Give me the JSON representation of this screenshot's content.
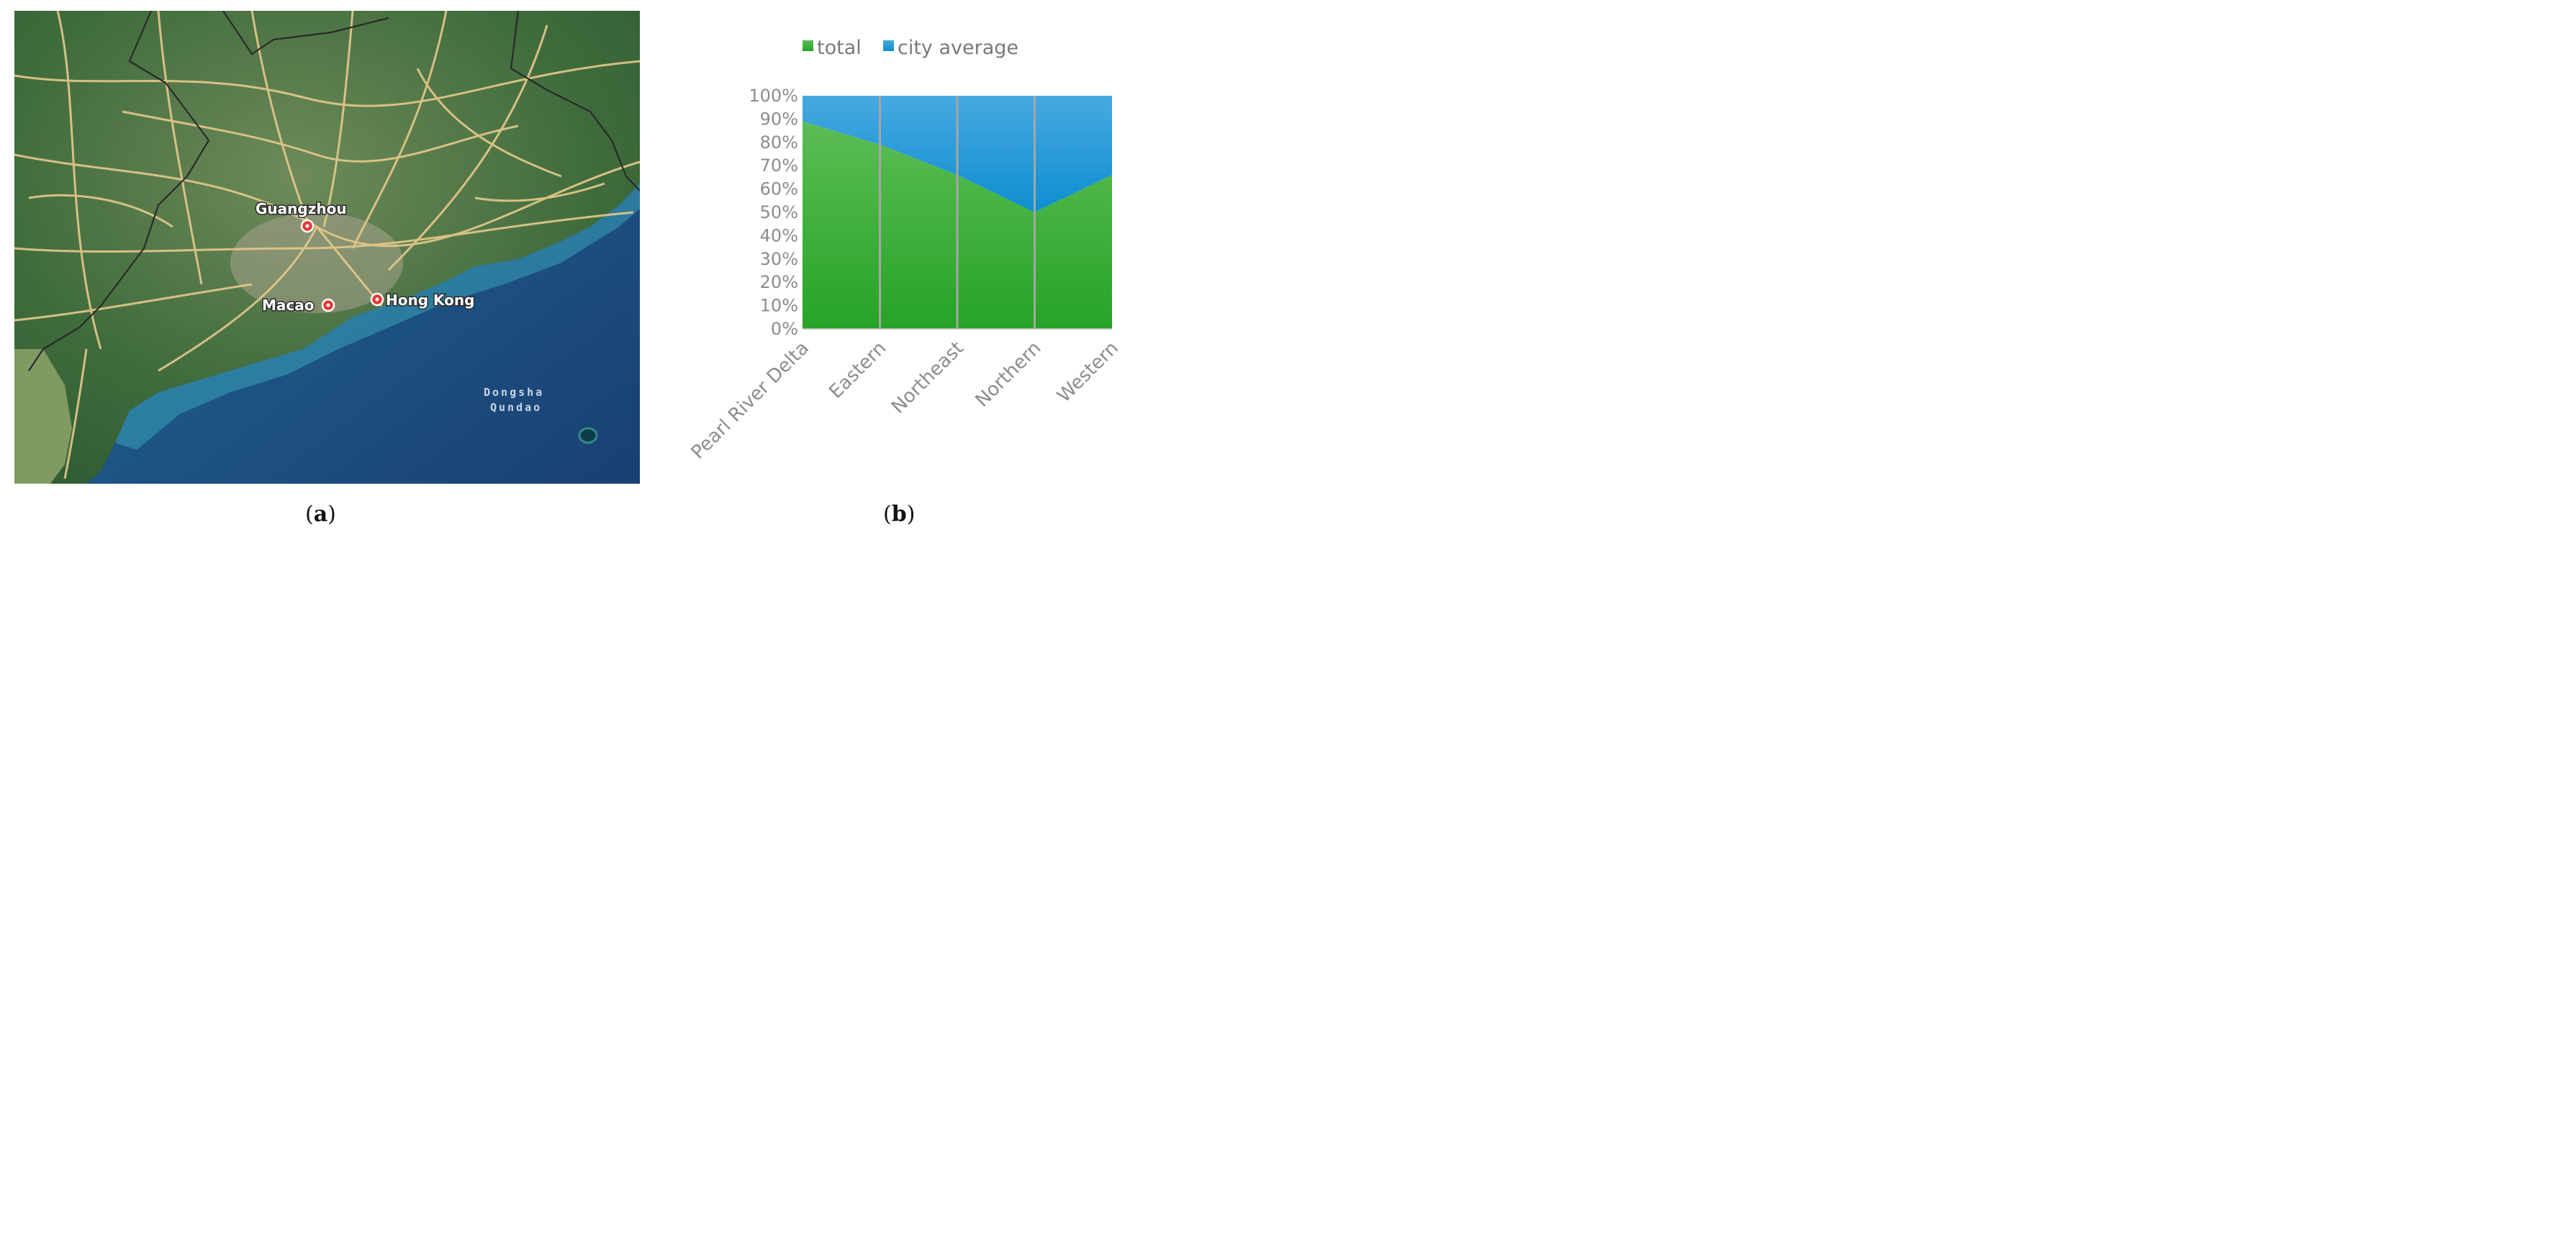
{
  "panel_a": {
    "caption_open": "(",
    "caption_letter": "a",
    "caption_close": ")",
    "map_labels": {
      "guangzhou": "Guangzhou",
      "macao": "Macao",
      "hong_kong": "Hong Kong",
      "island_line1": "Dongsha",
      "island_line2": "Qundao"
    }
  },
  "panel_b": {
    "caption_open": "(",
    "caption_letter": "b",
    "caption_close": ")"
  },
  "colors": {
    "total": "#2eaa2e",
    "city_average": "#1a9ad6",
    "divider": "#a6a6a6",
    "axis_text": "#8c8c8c"
  },
  "chart_data": {
    "type": "area",
    "stacked": "percent",
    "categories": [
      "Pearl River Delta",
      "Eastern",
      "Northeast",
      "Northern",
      "Western"
    ],
    "series": [
      {
        "name": "total",
        "values": [
          89,
          79,
          66,
          50,
          66
        ]
      },
      {
        "name": "city average",
        "values": [
          11,
          21,
          34,
          50,
          34
        ]
      }
    ],
    "ylim": [
      0,
      100
    ],
    "y_ticks": [
      0,
      10,
      20,
      30,
      40,
      50,
      60,
      70,
      80,
      90,
      100
    ],
    "y_tick_suffix": "%",
    "legend_position": "top",
    "grid": false,
    "xlabel": "",
    "ylabel": "",
    "title": ""
  }
}
